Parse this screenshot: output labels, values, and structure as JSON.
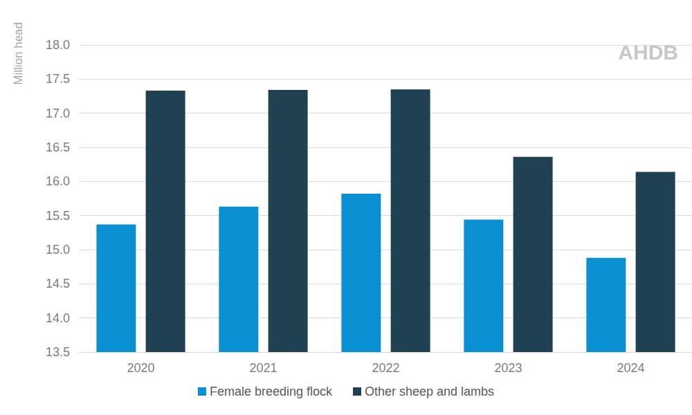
{
  "chart_data": {
    "type": "bar",
    "y_label": "Million head",
    "annotations": [
      "AHDB"
    ],
    "categories": [
      "2020",
      "2021",
      "2022",
      "2023",
      "2024"
    ],
    "series": [
      {
        "name": "Female breeding flock",
        "color": "#0a8fd3",
        "values": [
          15.37,
          15.63,
          15.82,
          15.44,
          14.88
        ]
      },
      {
        "name": "Other sheep and lambs",
        "color": "#204152",
        "values": [
          17.33,
          17.34,
          17.35,
          16.36,
          16.14
        ]
      }
    ],
    "ylim": [
      13.5,
      18.0
    ],
    "yticks": [
      13.5,
      {
        "value": 14,
        "label": "14.0"
      },
      14.5,
      {
        "value": 15,
        "label": "15.0"
      },
      15.5,
      {
        "value": 16,
        "label": "16.0"
      },
      16.5,
      {
        "value": 17,
        "label": "17.0"
      },
      17.5,
      {
        "value": 18,
        "label": "18.0"
      }
    ],
    "grid": true,
    "legend": "bottom",
    "data_labels": false
  }
}
